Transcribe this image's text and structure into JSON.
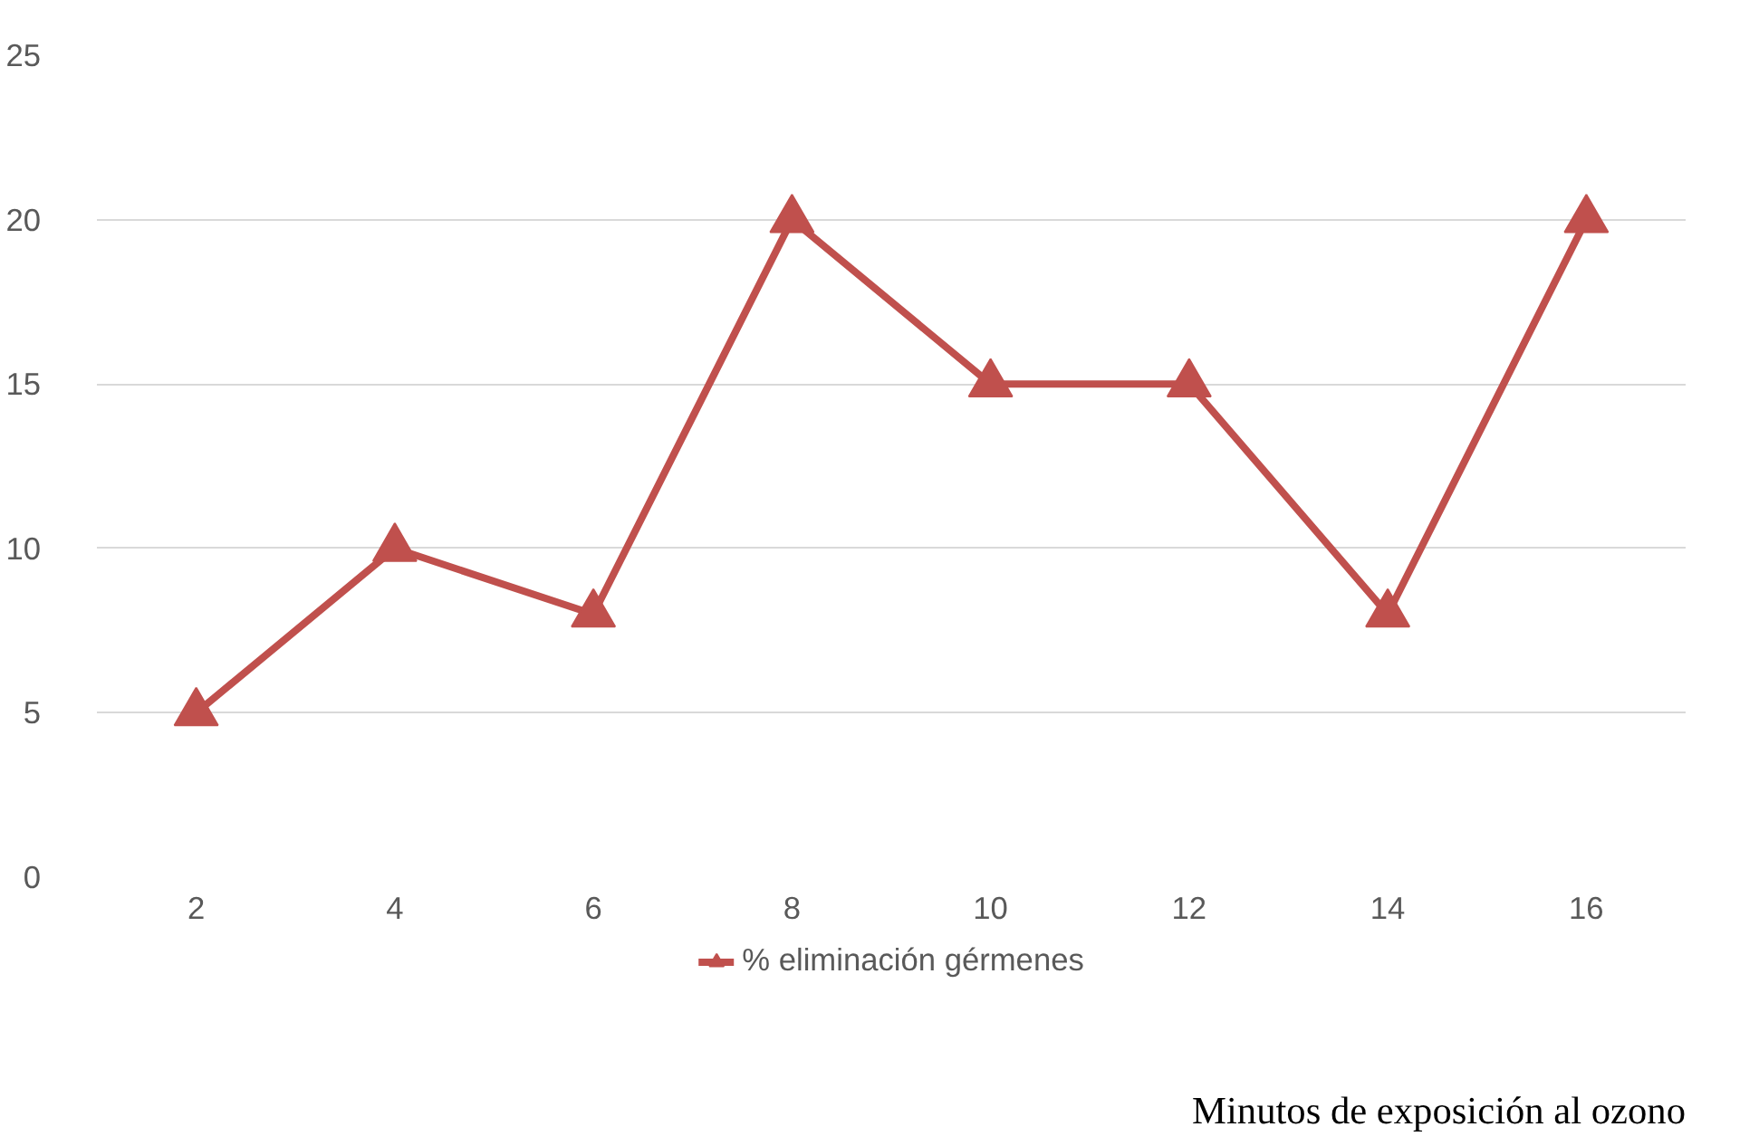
{
  "chart_data": {
    "type": "line",
    "xlabel": "Minutos de exposición al ozono",
    "categories": [
      "2",
      "4",
      "6",
      "8",
      "10",
      "12",
      "14",
      "16"
    ],
    "series": [
      {
        "name": "% eliminación gérmenes",
        "color": "#c0504d",
        "values": [
          5,
          10,
          8,
          20,
          15,
          15,
          8,
          20
        ]
      }
    ],
    "ylim": [
      0,
      25
    ],
    "yticks": [
      0,
      5,
      10,
      15,
      20,
      25
    ],
    "grid": "y",
    "legend": "bottom",
    "marker": "triangle",
    "line_style": "solid"
  }
}
